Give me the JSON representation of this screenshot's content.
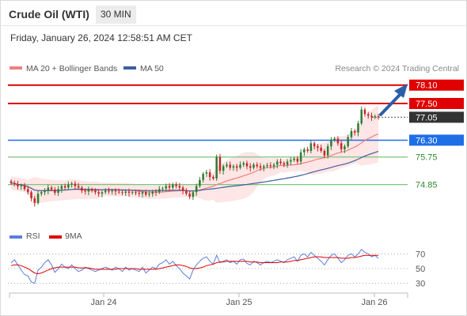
{
  "header": {
    "title": "Crude Oil (WTI)",
    "timeframe": "30 MIN",
    "datetime": "Friday, January 26, 2024 12:58:51 AM CET"
  },
  "legend": {
    "ma20": "MA 20 + Bollinger Bands",
    "ma50": "MA 50",
    "rsi": "RSI",
    "rsi_ma": "9MA",
    "credit": "Research © 2024 Trading Central"
  },
  "colors": {
    "candle_up": "#2e7d32",
    "candle_down": "#c62828",
    "ma20": "#f08080",
    "ma50": "#3f5f9f",
    "band_fill": "#fde2e0",
    "resistance": "#e00000",
    "pivot": "#1e6ee8",
    "support": "#7cc47c",
    "rsi": "#5b7fe0",
    "rsi_ma": "#e00000",
    "arrow": "#2b5fa6"
  },
  "chart_data": {
    "type": "candlestick",
    "timeframe": "30 MIN",
    "x_ticks": [
      "Jan 24",
      "Jan 25",
      "Jan 26"
    ],
    "price_levels": [
      {
        "value": 78.1,
        "label": "78.10",
        "kind": "resistance"
      },
      {
        "value": 77.5,
        "label": "77.50",
        "kind": "resistance"
      },
      {
        "value": 77.05,
        "label": "77.05",
        "kind": "last"
      },
      {
        "value": 76.3,
        "label": "76.30",
        "kind": "pivot"
      },
      {
        "value": 75.75,
        "label": "75.75",
        "kind": "support"
      },
      {
        "value": 74.85,
        "label": "74.85",
        "kind": "support"
      }
    ],
    "price_range": [
      73.6,
      78.3
    ],
    "closes": [
      74.9,
      74.87,
      74.79,
      74.82,
      74.7,
      74.6,
      74.4,
      74.25,
      74.55,
      74.6,
      74.65,
      74.75,
      74.69,
      74.58,
      74.7,
      74.8,
      74.75,
      74.85,
      74.88,
      74.8,
      74.75,
      74.65,
      74.62,
      74.69,
      74.65,
      74.6,
      74.55,
      74.6,
      74.65,
      74.62,
      74.65,
      74.62,
      74.6,
      74.58,
      74.62,
      74.58,
      74.6,
      74.58,
      74.55,
      74.6,
      74.52,
      74.55,
      74.62,
      74.6,
      74.7,
      74.72,
      74.8,
      74.75,
      74.85,
      74.8,
      74.75,
      74.65,
      74.55,
      74.45,
      74.6,
      74.8,
      75.0,
      75.2,
      75.25,
      75.1,
      75.05,
      75.75,
      75.3,
      75.45,
      75.5,
      75.4,
      75.45,
      75.4,
      75.5,
      75.55,
      75.45,
      75.4,
      75.5,
      75.45,
      75.4,
      75.45,
      75.48,
      75.45,
      75.5,
      75.6,
      75.55,
      75.5,
      75.6,
      75.65,
      75.7,
      75.6,
      75.9,
      76.0,
      75.95,
      76.2,
      76.1,
      76.05,
      75.95,
      75.8,
      76.1,
      76.3,
      76.35,
      76.2,
      76.0,
      76.1,
      76.4,
      76.6,
      76.55,
      76.85,
      77.3,
      77.15,
      77.1,
      77.05,
      77.08,
      77.05
    ],
    "rsi": {
      "levels": [
        70,
        50,
        30
      ],
      "range": [
        20,
        80
      ],
      "rsi_values": [
        58,
        62,
        55,
        48,
        42,
        40,
        32,
        30,
        48,
        52,
        58,
        62,
        55,
        45,
        50,
        56,
        52,
        50,
        55,
        50,
        46,
        48,
        52,
        50,
        48,
        46,
        48,
        50,
        52,
        50,
        48,
        52,
        50,
        46,
        52,
        48,
        50,
        48,
        46,
        52,
        44,
        48,
        52,
        50,
        56,
        58,
        62,
        56,
        60,
        54,
        50,
        44,
        40,
        36,
        48,
        55,
        60,
        64,
        66,
        60,
        56,
        68,
        58,
        60,
        62,
        58,
        60,
        56,
        62,
        63,
        57,
        55,
        60,
        58,
        55,
        58,
        60,
        58,
        60,
        62,
        60,
        58,
        62,
        64,
        66,
        60,
        68,
        70,
        66,
        72,
        68,
        64,
        60,
        55,
        62,
        68,
        70,
        64,
        58,
        62,
        68,
        70,
        66,
        70,
        76,
        72,
        70,
        66,
        68,
        64
      ],
      "ma_values": [
        54,
        55,
        55,
        54,
        52,
        50,
        47,
        44,
        43,
        44,
        46,
        48,
        50,
        51,
        52,
        52,
        52,
        52,
        52,
        52,
        51,
        51,
        51,
        51,
        50,
        49,
        49,
        49,
        49,
        49,
        49,
        49,
        50,
        50,
        50,
        50,
        50,
        50,
        49,
        49,
        49,
        49,
        49,
        49,
        50,
        51,
        52,
        53,
        54,
        55,
        55,
        54,
        53,
        51,
        50,
        50,
        51,
        52,
        54,
        55,
        56,
        58,
        59,
        59,
        60,
        60,
        60,
        60,
        60,
        60,
        60,
        59,
        59,
        59,
        58,
        58,
        58,
        58,
        58,
        58,
        59,
        59,
        59,
        60,
        61,
        61,
        62,
        63,
        64,
        65,
        66,
        66,
        66,
        65,
        65,
        65,
        65,
        65,
        64,
        64,
        64,
        65,
        65,
        66,
        67,
        68,
        68,
        68,
        68,
        68
      ]
    }
  }
}
